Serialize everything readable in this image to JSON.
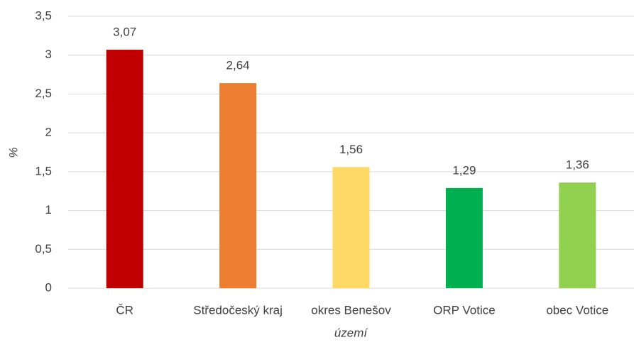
{
  "chart_data": {
    "type": "bar",
    "x_label": "území",
    "y_label": "%",
    "categories": [
      "ČR",
      "Středočeský kraj",
      "okres Benešov",
      "ORP Votice",
      "obec Votice"
    ],
    "values": [
      3.07,
      2.64,
      1.56,
      1.29,
      1.36
    ],
    "value_labels": [
      "3,07",
      "2,64",
      "1,56",
      "1,29",
      "1,36"
    ],
    "colors": [
      "#c00000",
      "#ed7d31",
      "#ffd966",
      "#00b050",
      "#92d050"
    ],
    "ylim": [
      0,
      3.5
    ],
    "yticks": [
      0,
      {
        "value": 0.5,
        "label": "0,5"
      },
      1,
      {
        "value": 1.5,
        "label": "1,5"
      },
      2,
      {
        "value": 2.5,
        "label": "2,5"
      },
      3,
      {
        "value": 3.5,
        "label": "3,5"
      }
    ],
    "grid": true
  }
}
